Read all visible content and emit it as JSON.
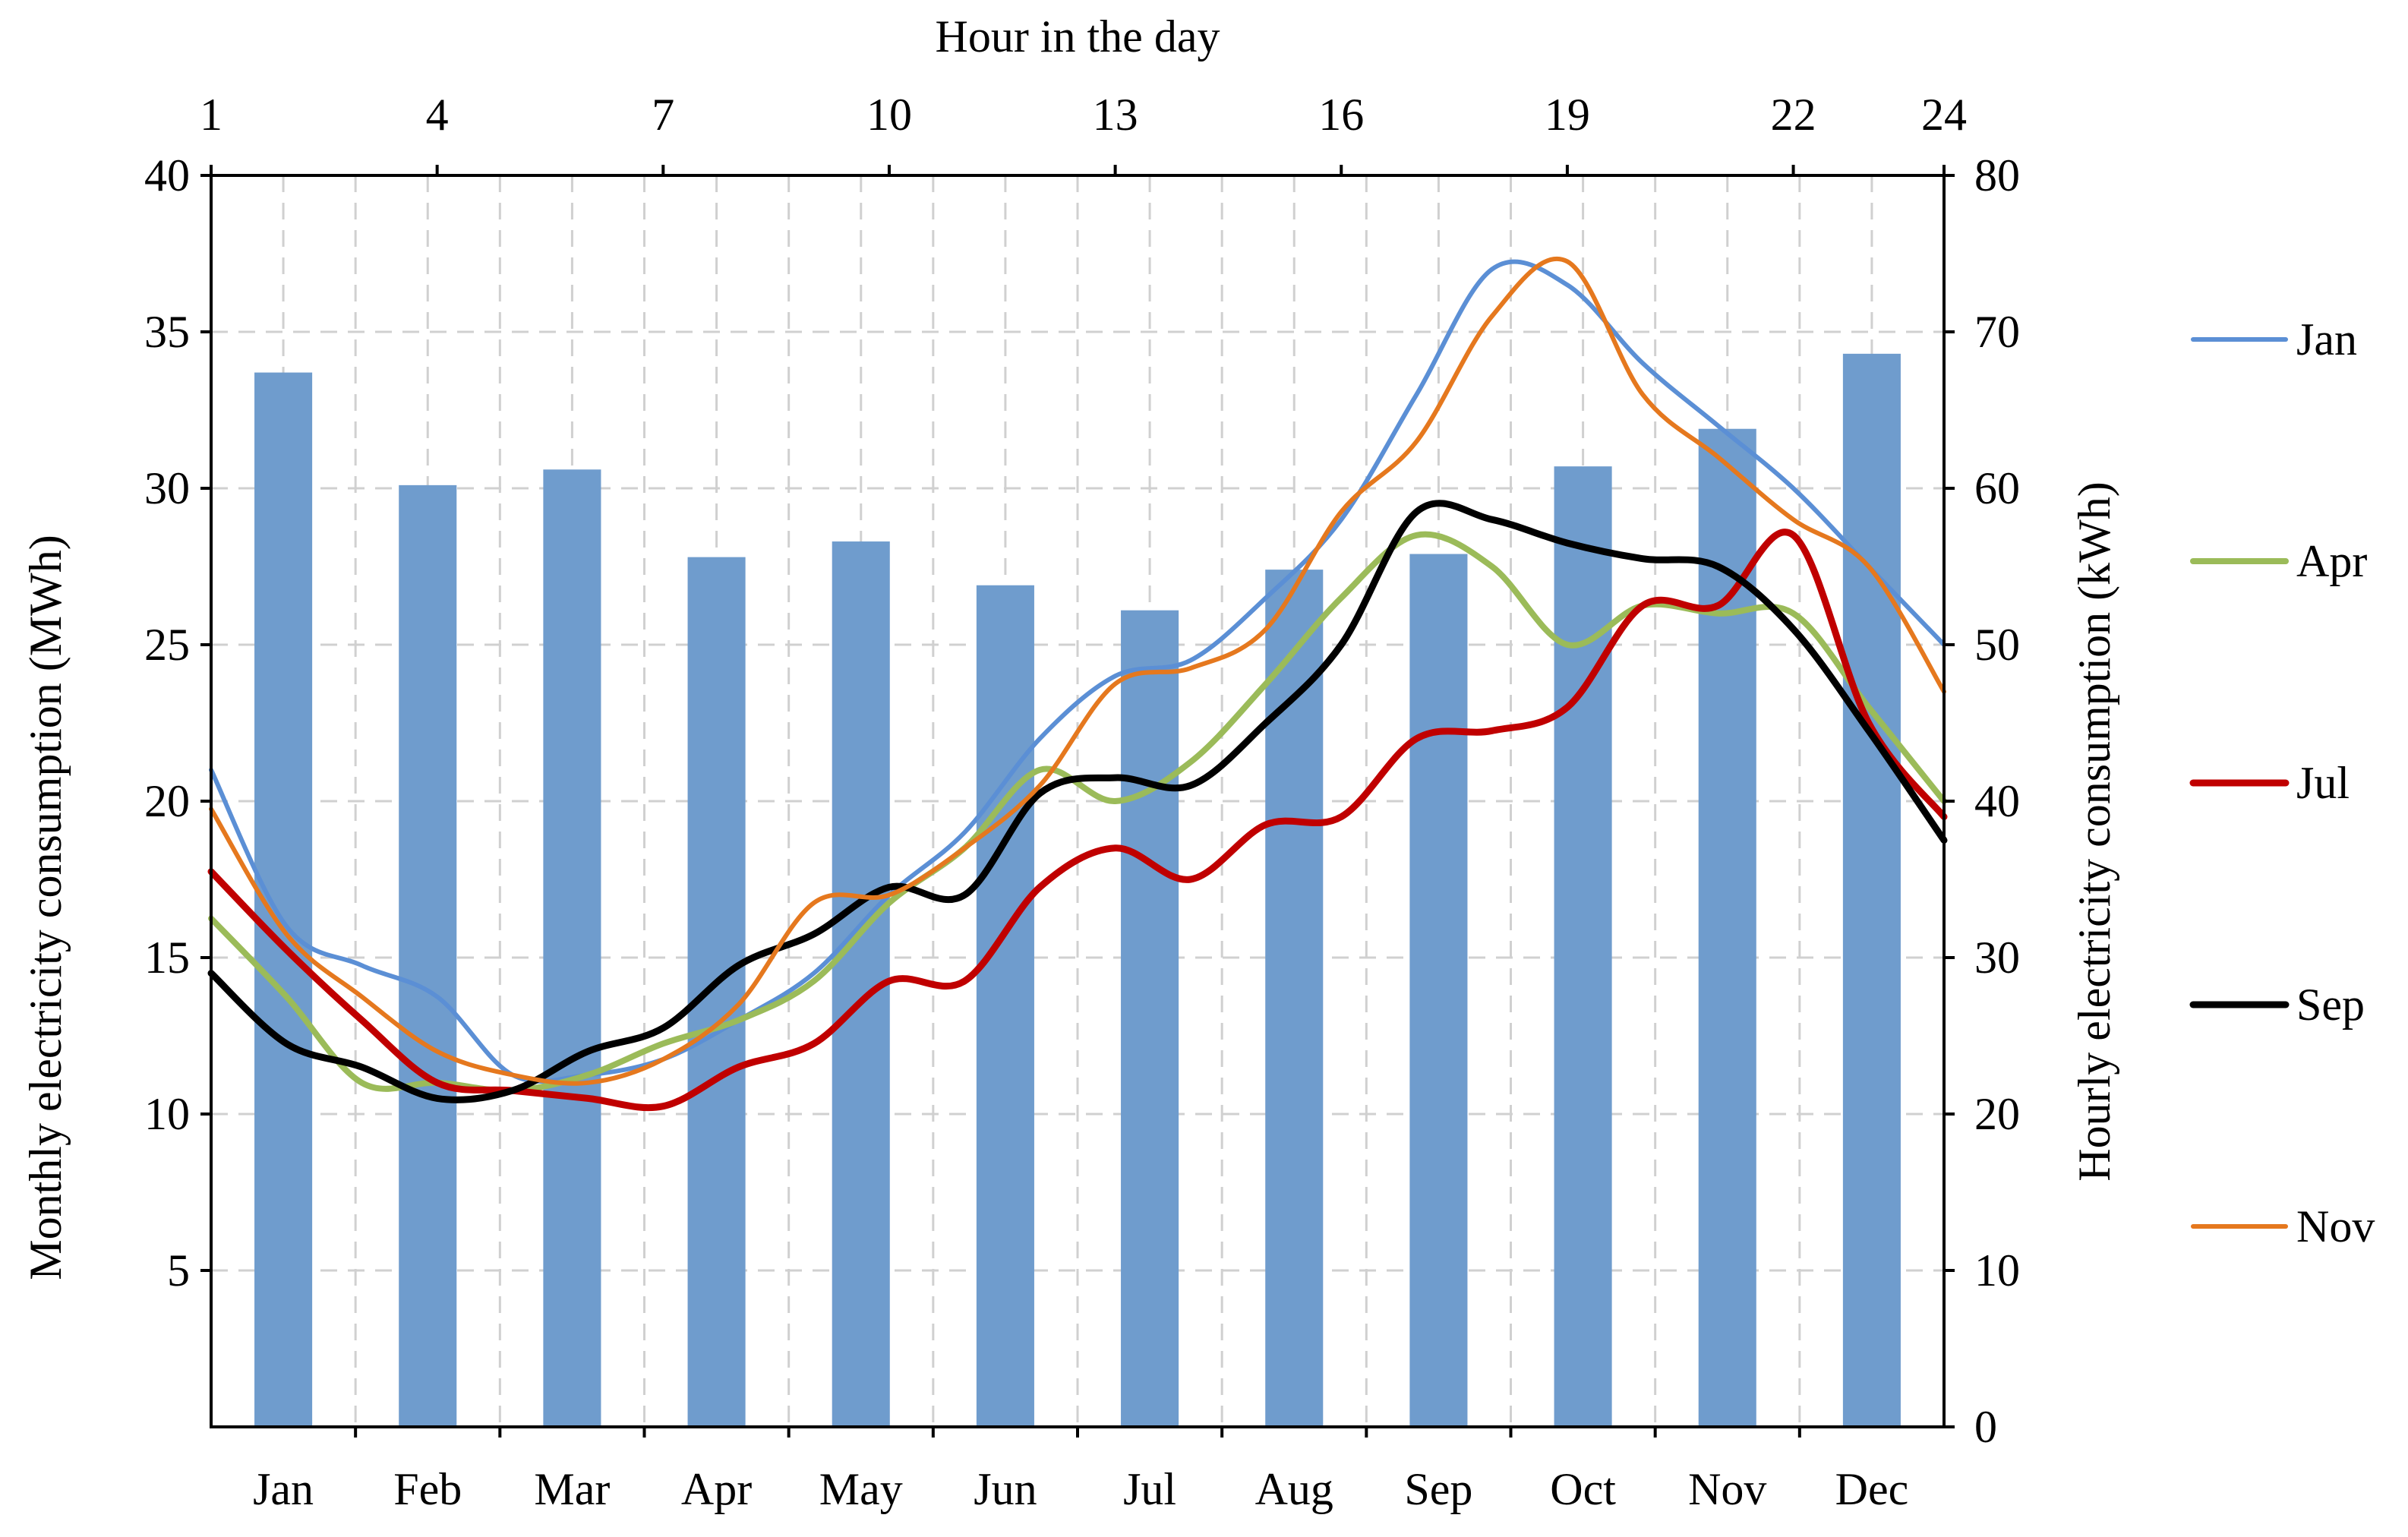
{
  "chart_data": {
    "type": "bar+line",
    "colors": {
      "bars": "#6f9ccd",
      "grid": "#d0d0d0",
      "Jan": "#5b8fd5",
      "Apr": "#9bbb59",
      "Jul": "#c00000",
      "Sep": "#000000",
      "Nov": "#e5781e"
    },
    "bars": {
      "name": "Monthly electricity consumption",
      "categories": [
        "Jan",
        "Feb",
        "Mar",
        "Apr",
        "May",
        "Jun",
        "Jul",
        "Aug",
        "Sep",
        "Oct",
        "Nov",
        "Dec"
      ],
      "values": [
        33.7,
        30.1,
        30.6,
        27.8,
        28.3,
        26.9,
        26.1,
        27.4,
        27.9,
        30.7,
        31.9,
        34.3
      ],
      "unit": "MWh"
    },
    "hourly": {
      "hours": [
        1,
        2,
        3,
        4,
        5,
        6,
        7,
        8,
        9,
        10,
        11,
        12,
        13,
        14,
        15,
        16,
        17,
        18,
        19,
        20,
        21,
        22,
        23,
        24
      ],
      "series": [
        {
          "name": "Jan",
          "values": [
            42,
            32,
            29.5,
            27.5,
            22.5,
            22.5,
            23.5,
            26,
            29,
            34,
            38,
            44,
            48,
            49,
            53,
            58,
            66,
            74,
            73,
            68,
            64,
            60,
            55,
            50
          ]
        },
        {
          "name": "Apr",
          "values": [
            32.5,
            27.5,
            22,
            22,
            21.5,
            22.5,
            24.5,
            26,
            28.5,
            33.5,
            37,
            42,
            40,
            42.5,
            47.5,
            53,
            57,
            55,
            50,
            52.5,
            52,
            52,
            46,
            40
          ]
        },
        {
          "name": "Jul",
          "values": [
            35.5,
            30.5,
            26,
            22,
            21.5,
            21,
            20.5,
            23,
            24.5,
            28.5,
            28.5,
            34.5,
            37,
            35,
            38.5,
            39,
            44,
            44.5,
            46,
            52.5,
            52.5,
            57,
            45,
            39
          ]
        },
        {
          "name": "Sep",
          "values": [
            29,
            24.5,
            23,
            21,
            21.5,
            24,
            25.5,
            29.5,
            31.5,
            34.5,
            34,
            40.5,
            41.5,
            41,
            45,
            50,
            58.5,
            58,
            56.5,
            55.5,
            55,
            51,
            44.5,
            37.5
          ]
        },
        {
          "name": "Nov",
          "values": [
            39.5,
            31.5,
            27.5,
            24,
            22.5,
            22,
            23.5,
            27,
            33.5,
            34,
            37,
            41,
            47.5,
            48.5,
            51,
            58.5,
            63,
            71,
            74.5,
            66,
            62,
            58,
            55,
            47
          ]
        }
      ]
    },
    "axes": {
      "x_bottom": {
        "label": "",
        "ticks": [
          "Jan",
          "Feb",
          "Mar",
          "Apr",
          "May",
          "Jun",
          "Jul",
          "Aug",
          "Sep",
          "Oct",
          "Nov",
          "Dec"
        ]
      },
      "x_top": {
        "label": "Hour in the day",
        "ticks": [
          1,
          4,
          7,
          10,
          13,
          16,
          19,
          22,
          24
        ],
        "range": [
          1,
          24
        ]
      },
      "y_left": {
        "label": "Monthly electricity  consumption (MWh)",
        "ticks": [
          5,
          10,
          15,
          20,
          25,
          30,
          35,
          40
        ],
        "range": [
          0,
          40
        ]
      },
      "y_right": {
        "label": "Hourly electricity consumption (kWh)",
        "ticks": [
          0,
          10,
          20,
          30,
          40,
          50,
          60,
          70,
          80
        ],
        "range": [
          0,
          80
        ]
      }
    },
    "legend": {
      "position": "right",
      "entries": [
        "Jan",
        "Apr",
        "Jul",
        "Sep",
        "Nov"
      ]
    },
    "grid": true
  }
}
